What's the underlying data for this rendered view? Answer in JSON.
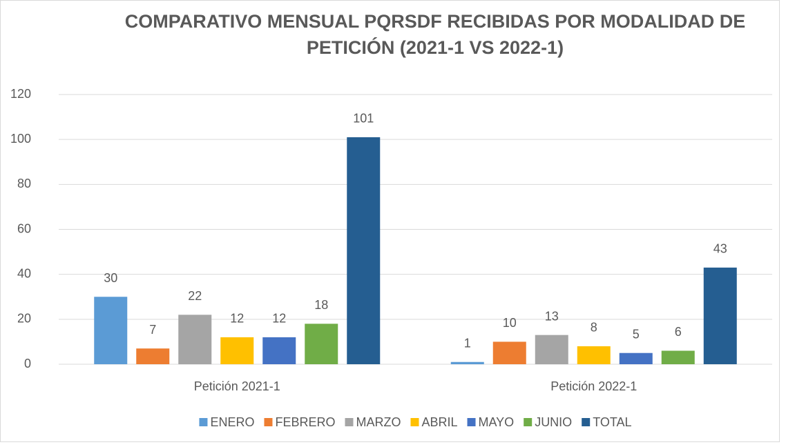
{
  "chart_data": {
    "type": "bar",
    "title": "COMPARATIVO MENSUAL PQRSDF RECIBIDAS POR MODALIDAD DE PETICIÓN (2021-1 VS 2022-1)",
    "categories": [
      "Petición 2021-1",
      "Petición 2022-1"
    ],
    "series": [
      {
        "name": "ENERO",
        "color": "#5b9bd5",
        "values": [
          30,
          1
        ]
      },
      {
        "name": "FEBRERO",
        "color": "#ed7d31",
        "values": [
          7,
          10
        ]
      },
      {
        "name": "MARZO",
        "color": "#a5a5a5",
        "values": [
          22,
          13
        ]
      },
      {
        "name": "ABRIL",
        "color": "#ffc000",
        "values": [
          12,
          8
        ]
      },
      {
        "name": "MAYO",
        "color": "#4472c4",
        "values": [
          12,
          5
        ]
      },
      {
        "name": "JUNIO",
        "color": "#70ad47",
        "values": [
          18,
          6
        ]
      },
      {
        "name": "TOTAL",
        "color": "#255e91",
        "values": [
          101,
          43
        ]
      }
    ],
    "ylim": [
      0,
      120
    ],
    "yticks": [
      0,
      20,
      40,
      60,
      80,
      100,
      120
    ],
    "grid": true,
    "legend": "bottom"
  }
}
